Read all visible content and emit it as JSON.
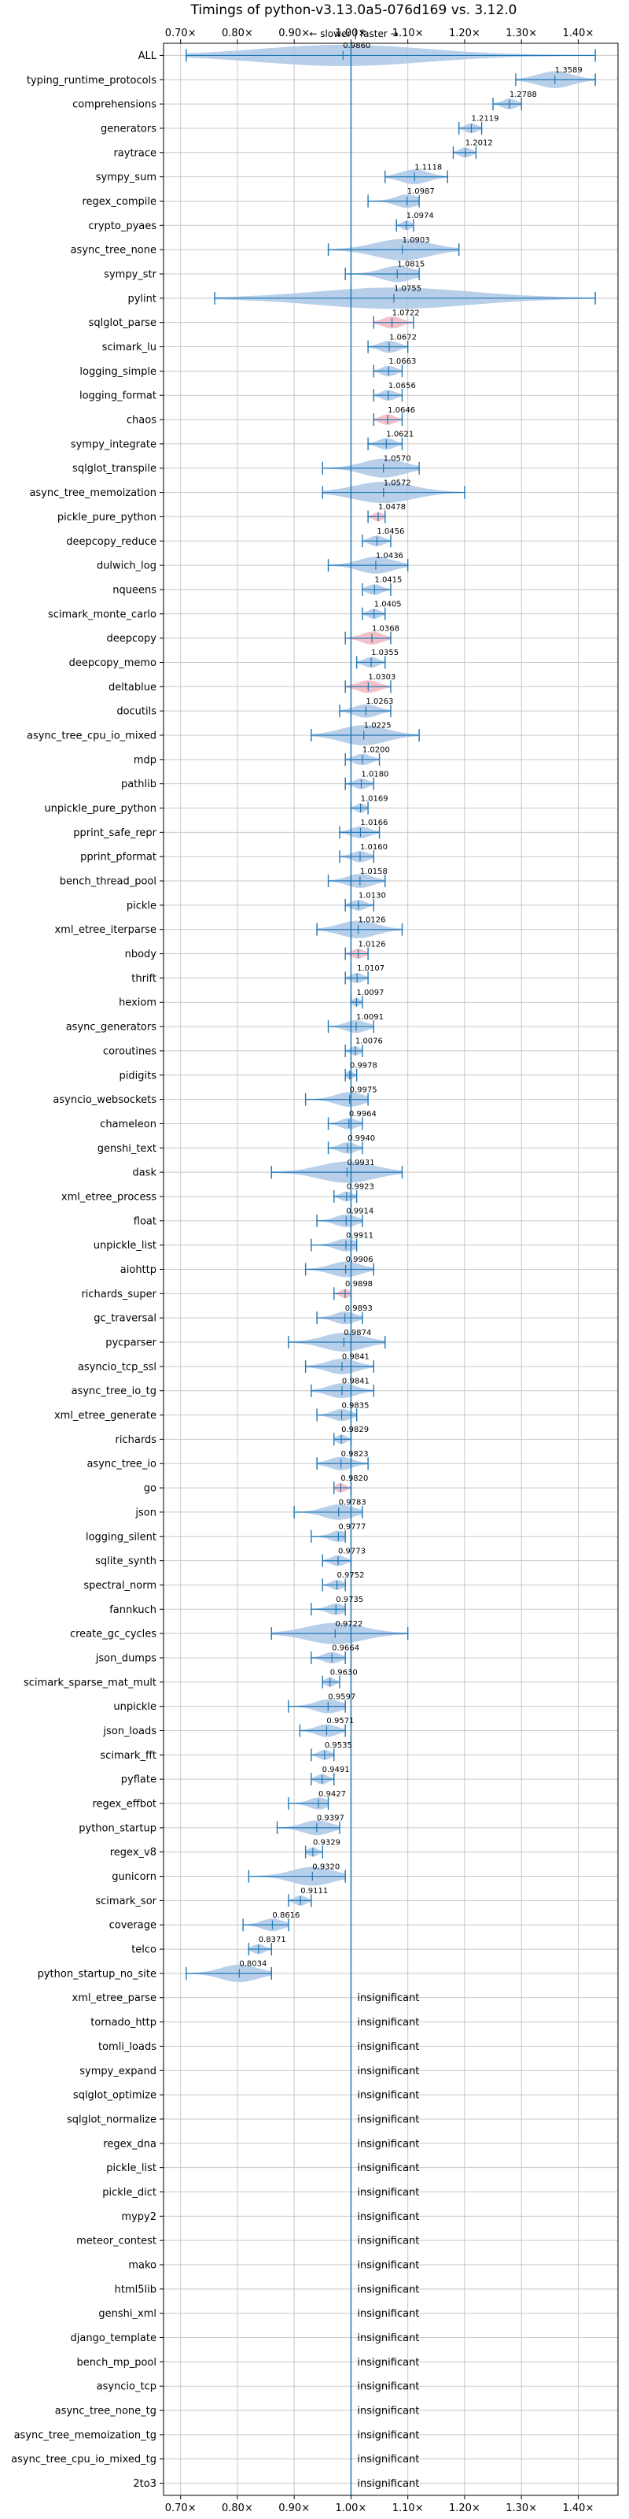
{
  "chart_data": {
    "type": "violin",
    "title": "Timings of python-v3.13.0a5-076d169 vs. 3.12.0",
    "direction_label": "← slower | faster →",
    "xlim": [
      0.67,
      1.47
    ],
    "xticks": [
      0.7,
      0.8,
      0.9,
      1.0,
      1.1,
      1.2,
      1.3,
      1.4
    ],
    "xtick_labels": [
      "0.70×",
      "0.80×",
      "0.90×",
      "1.00×",
      "1.10×",
      "1.20×",
      "1.30×",
      "1.40×"
    ],
    "reference_line": 1.0,
    "grid": true,
    "colors": {
      "violin": "#abc7e6",
      "violin_highlight": "#f2b6c0",
      "whisker": "#1f77b4",
      "grid": "#c8c8c8"
    },
    "insignificant_text": "insignificant",
    "benchmarks": [
      {
        "name": "ALL",
        "value": 0.986,
        "label": "0.9860",
        "min": 0.71,
        "max": 1.43
      },
      {
        "name": "typing_runtime_protocols",
        "value": 1.3589,
        "label": "1.3589",
        "min": 1.29,
        "max": 1.43
      },
      {
        "name": "comprehensions",
        "value": 1.2788,
        "label": "1.2788",
        "min": 1.25,
        "max": 1.3
      },
      {
        "name": "generators",
        "value": 1.2119,
        "label": "1.2119",
        "min": 1.19,
        "max": 1.23
      },
      {
        "name": "raytrace",
        "value": 1.2012,
        "label": "1.2012",
        "min": 1.18,
        "max": 1.22
      },
      {
        "name": "sympy_sum",
        "value": 1.1118,
        "label": "1.1118",
        "min": 1.06,
        "max": 1.17
      },
      {
        "name": "regex_compile",
        "value": 1.0987,
        "label": "1.0987",
        "min": 1.03,
        "max": 1.12
      },
      {
        "name": "crypto_pyaes",
        "value": 1.0974,
        "label": "1.0974",
        "min": 1.08,
        "max": 1.11
      },
      {
        "name": "async_tree_none",
        "value": 1.0903,
        "label": "1.0903",
        "min": 0.96,
        "max": 1.19
      },
      {
        "name": "sympy_str",
        "value": 1.0815,
        "label": "1.0815",
        "min": 0.99,
        "max": 1.12
      },
      {
        "name": "pylint",
        "value": 1.0755,
        "label": "1.0755",
        "min": 0.76,
        "max": 1.43
      },
      {
        "name": "sqlglot_parse",
        "value": 1.0722,
        "label": "1.0722",
        "min": 1.04,
        "max": 1.11,
        "highlight": true
      },
      {
        "name": "scimark_lu",
        "value": 1.0672,
        "label": "1.0672",
        "min": 1.03,
        "max": 1.1
      },
      {
        "name": "logging_simple",
        "value": 1.0663,
        "label": "1.0663",
        "min": 1.04,
        "max": 1.09
      },
      {
        "name": "logging_format",
        "value": 1.0656,
        "label": "1.0656",
        "min": 1.04,
        "max": 1.09
      },
      {
        "name": "chaos",
        "value": 1.0646,
        "label": "1.0646",
        "min": 1.04,
        "max": 1.09,
        "highlight": true
      },
      {
        "name": "sympy_integrate",
        "value": 1.0621,
        "label": "1.0621",
        "min": 1.03,
        "max": 1.09
      },
      {
        "name": "sqlglot_transpile",
        "value": 1.057,
        "label": "1.0570",
        "min": 0.95,
        "max": 1.12
      },
      {
        "name": "async_tree_memoization",
        "value": 1.0572,
        "label": "1.0572",
        "min": 0.95,
        "max": 1.2
      },
      {
        "name": "pickle_pure_python",
        "value": 1.0478,
        "label": "1.0478",
        "min": 1.03,
        "max": 1.06,
        "highlight": true
      },
      {
        "name": "deepcopy_reduce",
        "value": 1.0456,
        "label": "1.0456",
        "min": 1.02,
        "max": 1.07
      },
      {
        "name": "dulwich_log",
        "value": 1.0436,
        "label": "1.0436",
        "min": 0.96,
        "max": 1.1
      },
      {
        "name": "nqueens",
        "value": 1.0415,
        "label": "1.0415",
        "min": 1.02,
        "max": 1.07
      },
      {
        "name": "scimark_monte_carlo",
        "value": 1.0405,
        "label": "1.0405",
        "min": 1.02,
        "max": 1.06
      },
      {
        "name": "deepcopy",
        "value": 1.0368,
        "label": "1.0368",
        "min": 0.99,
        "max": 1.07,
        "highlight": true
      },
      {
        "name": "deepcopy_memo",
        "value": 1.0355,
        "label": "1.0355",
        "min": 1.01,
        "max": 1.06
      },
      {
        "name": "deltablue",
        "value": 1.0303,
        "label": "1.0303",
        "min": 0.99,
        "max": 1.07,
        "highlight": true
      },
      {
        "name": "docutils",
        "value": 1.0263,
        "label": "1.0263",
        "min": 0.98,
        "max": 1.07
      },
      {
        "name": "async_tree_cpu_io_mixed",
        "value": 1.0225,
        "label": "1.0225",
        "min": 0.93,
        "max": 1.12
      },
      {
        "name": "mdp",
        "value": 1.02,
        "label": "1.0200",
        "min": 0.99,
        "max": 1.05
      },
      {
        "name": "pathlib",
        "value": 1.018,
        "label": "1.0180",
        "min": 0.99,
        "max": 1.04
      },
      {
        "name": "unpickle_pure_python",
        "value": 1.0169,
        "label": "1.0169",
        "min": 1.0,
        "max": 1.03
      },
      {
        "name": "pprint_safe_repr",
        "value": 1.0166,
        "label": "1.0166",
        "min": 0.98,
        "max": 1.05
      },
      {
        "name": "pprint_pformat",
        "value": 1.016,
        "label": "1.0160",
        "min": 0.98,
        "max": 1.04
      },
      {
        "name": "bench_thread_pool",
        "value": 1.0158,
        "label": "1.0158",
        "min": 0.96,
        "max": 1.06
      },
      {
        "name": "pickle",
        "value": 1.013,
        "label": "1.0130",
        "min": 0.99,
        "max": 1.04
      },
      {
        "name": "xml_etree_iterparse",
        "value": 1.0126,
        "label": "1.0126",
        "min": 0.94,
        "max": 1.09
      },
      {
        "name": "nbody",
        "value": 1.0126,
        "label": "1.0126",
        "min": 0.99,
        "max": 1.03,
        "highlight": true
      },
      {
        "name": "thrift",
        "value": 1.0107,
        "label": "1.0107",
        "min": 0.99,
        "max": 1.03
      },
      {
        "name": "hexiom",
        "value": 1.0097,
        "label": "1.0097",
        "min": 1.0,
        "max": 1.02
      },
      {
        "name": "async_generators",
        "value": 1.0091,
        "label": "1.0091",
        "min": 0.96,
        "max": 1.04
      },
      {
        "name": "coroutines",
        "value": 1.0076,
        "label": "1.0076",
        "min": 0.99,
        "max": 1.02
      },
      {
        "name": "pidigits",
        "value": 0.9978,
        "label": "0.9978",
        "min": 0.99,
        "max": 1.01
      },
      {
        "name": "asyncio_websockets",
        "value": 0.9975,
        "label": "0.9975",
        "min": 0.92,
        "max": 1.03
      },
      {
        "name": "chameleon",
        "value": 0.9964,
        "label": "0.9964",
        "min": 0.96,
        "max": 1.02
      },
      {
        "name": "genshi_text",
        "value": 0.994,
        "label": "0.9940",
        "min": 0.96,
        "max": 1.02
      },
      {
        "name": "dask",
        "value": 0.9931,
        "label": "0.9931",
        "min": 0.86,
        "max": 1.09
      },
      {
        "name": "xml_etree_process",
        "value": 0.9923,
        "label": "0.9923",
        "min": 0.97,
        "max": 1.01
      },
      {
        "name": "float",
        "value": 0.9914,
        "label": "0.9914",
        "min": 0.94,
        "max": 1.02
      },
      {
        "name": "unpickle_list",
        "value": 0.9911,
        "label": "0.9911",
        "min": 0.93,
        "max": 1.01
      },
      {
        "name": "aiohttp",
        "value": 0.9906,
        "label": "0.9906",
        "min": 0.92,
        "max": 1.04
      },
      {
        "name": "richards_super",
        "value": 0.9898,
        "label": "0.9898",
        "min": 0.97,
        "max": 1.0,
        "highlight": true
      },
      {
        "name": "gc_traversal",
        "value": 0.9893,
        "label": "0.9893",
        "min": 0.94,
        "max": 1.02
      },
      {
        "name": "pycparser",
        "value": 0.9874,
        "label": "0.9874",
        "min": 0.89,
        "max": 1.06
      },
      {
        "name": "asyncio_tcp_ssl",
        "value": 0.9841,
        "label": "0.9841",
        "min": 0.92,
        "max": 1.04
      },
      {
        "name": "async_tree_io_tg",
        "value": 0.9841,
        "label": "0.9841",
        "min": 0.93,
        "max": 1.04
      },
      {
        "name": "xml_etree_generate",
        "value": 0.9835,
        "label": "0.9835",
        "min": 0.94,
        "max": 1.01
      },
      {
        "name": "richards",
        "value": 0.9829,
        "label": "0.9829",
        "min": 0.97,
        "max": 1.0
      },
      {
        "name": "async_tree_io",
        "value": 0.9823,
        "label": "0.9823",
        "min": 0.94,
        "max": 1.03
      },
      {
        "name": "go",
        "value": 0.982,
        "label": "0.9820",
        "min": 0.97,
        "max": 1.0,
        "highlight": true
      },
      {
        "name": "json",
        "value": 0.9783,
        "label": "0.9783",
        "min": 0.9,
        "max": 1.02
      },
      {
        "name": "logging_silent",
        "value": 0.9777,
        "label": "0.9777",
        "min": 0.93,
        "max": 0.99
      },
      {
        "name": "sqlite_synth",
        "value": 0.9773,
        "label": "0.9773",
        "min": 0.95,
        "max": 1.0
      },
      {
        "name": "spectral_norm",
        "value": 0.9752,
        "label": "0.9752",
        "min": 0.95,
        "max": 0.99
      },
      {
        "name": "fannkuch",
        "value": 0.9735,
        "label": "0.9735",
        "min": 0.93,
        "max": 0.99
      },
      {
        "name": "create_gc_cycles",
        "value": 0.9722,
        "label": "0.9722",
        "min": 0.86,
        "max": 1.1
      },
      {
        "name": "json_dumps",
        "value": 0.9664,
        "label": "0.9664",
        "min": 0.93,
        "max": 0.99
      },
      {
        "name": "scimark_sparse_mat_mult",
        "value": 0.963,
        "label": "0.9630",
        "min": 0.95,
        "max": 0.98
      },
      {
        "name": "unpickle",
        "value": 0.9597,
        "label": "0.9597",
        "min": 0.89,
        "max": 0.99
      },
      {
        "name": "json_loads",
        "value": 0.9571,
        "label": "0.9571",
        "min": 0.91,
        "max": 0.99
      },
      {
        "name": "scimark_fft",
        "value": 0.9535,
        "label": "0.9535",
        "min": 0.93,
        "max": 0.97
      },
      {
        "name": "pyflate",
        "value": 0.9491,
        "label": "0.9491",
        "min": 0.93,
        "max": 0.97
      },
      {
        "name": "regex_effbot",
        "value": 0.9427,
        "label": "0.9427",
        "min": 0.89,
        "max": 0.96
      },
      {
        "name": "python_startup",
        "value": 0.9397,
        "label": "0.9397",
        "min": 0.87,
        "max": 0.98
      },
      {
        "name": "regex_v8",
        "value": 0.9329,
        "label": "0.9329",
        "min": 0.92,
        "max": 0.95
      },
      {
        "name": "gunicorn",
        "value": 0.932,
        "label": "0.9320",
        "min": 0.82,
        "max": 0.99
      },
      {
        "name": "scimark_sor",
        "value": 0.9111,
        "label": "0.9111",
        "min": 0.89,
        "max": 0.93
      },
      {
        "name": "coverage",
        "value": 0.8616,
        "label": "0.8616",
        "min": 0.81,
        "max": 0.89
      },
      {
        "name": "telco",
        "value": 0.8371,
        "label": "0.8371",
        "min": 0.82,
        "max": 0.86
      },
      {
        "name": "python_startup_no_site",
        "value": 0.8034,
        "label": "0.8034",
        "min": 0.71,
        "max": 0.86
      },
      {
        "name": "xml_etree_parse",
        "insignificant": true
      },
      {
        "name": "tornado_http",
        "insignificant": true
      },
      {
        "name": "tomli_loads",
        "insignificant": true
      },
      {
        "name": "sympy_expand",
        "insignificant": true
      },
      {
        "name": "sqlglot_optimize",
        "insignificant": true
      },
      {
        "name": "sqlglot_normalize",
        "insignificant": true
      },
      {
        "name": "regex_dna",
        "insignificant": true
      },
      {
        "name": "pickle_list",
        "insignificant": true
      },
      {
        "name": "pickle_dict",
        "insignificant": true
      },
      {
        "name": "mypy2",
        "insignificant": true
      },
      {
        "name": "meteor_contest",
        "insignificant": true
      },
      {
        "name": "mako",
        "insignificant": true
      },
      {
        "name": "html5lib",
        "insignificant": true
      },
      {
        "name": "genshi_xml",
        "insignificant": true
      },
      {
        "name": "django_template",
        "insignificant": true
      },
      {
        "name": "bench_mp_pool",
        "insignificant": true
      },
      {
        "name": "asyncio_tcp",
        "insignificant": true
      },
      {
        "name": "async_tree_none_tg",
        "insignificant": true
      },
      {
        "name": "async_tree_memoization_tg",
        "insignificant": true
      },
      {
        "name": "async_tree_cpu_io_mixed_tg",
        "insignificant": true
      },
      {
        "name": "2to3",
        "insignificant": true
      }
    ]
  }
}
